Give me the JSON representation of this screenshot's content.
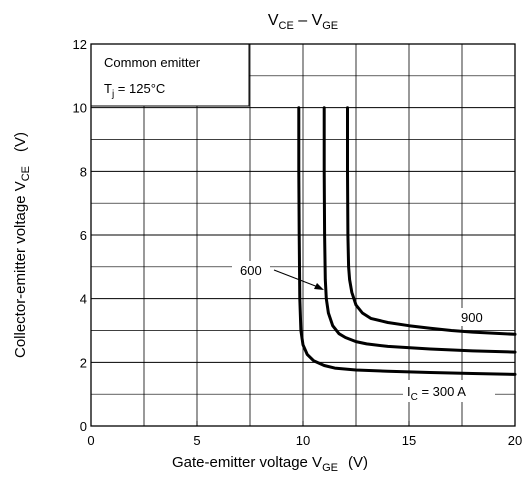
{
  "chart_data": {
    "type": "line",
    "title": {
      "main": "V",
      "sub1": "CE",
      "mid": " – V",
      "sub2": "GE"
    },
    "xlabel": {
      "text": "Gate-emitter voltage   V",
      "sub": "GE",
      "unit": "(V)"
    },
    "ylabel": {
      "text": "Collector-emitter voltage   V",
      "sub": "CE",
      "unit": "(V)"
    },
    "xlim": [
      0,
      20
    ],
    "ylim": [
      0,
      12
    ],
    "xticks": [
      "0",
      "5",
      "10",
      "15",
      "20"
    ],
    "yticks": [
      "0",
      "2",
      "4",
      "6",
      "8",
      "10",
      "12"
    ],
    "grid": true,
    "annotation": {
      "line1": "Common emitter",
      "line2_main": "T",
      "line2_sub": "j",
      "line2_rest": " = 125°C"
    },
    "series": [
      {
        "name": "300 A",
        "label_main": "I",
        "label_sub": "C",
        "label_rest": " = 300 A",
        "x": [
          9.8,
          9.8,
          9.82,
          9.85,
          9.9,
          10.0,
          10.2,
          10.5,
          11.0,
          11.5,
          12.5,
          14.0,
          16.0,
          18.0,
          20.0
        ],
        "y": [
          10.0,
          8.0,
          6.0,
          4.0,
          3.0,
          2.55,
          2.25,
          2.05,
          1.9,
          1.82,
          1.76,
          1.72,
          1.68,
          1.65,
          1.62
        ]
      },
      {
        "name": "600",
        "label": "600",
        "x": [
          11.0,
          11.0,
          11.02,
          11.05,
          11.1,
          11.2,
          11.4,
          11.7,
          12.0,
          12.5,
          13.0,
          14.0,
          16.0,
          18.0,
          20.0
        ],
        "y": [
          10.0,
          8.0,
          6.0,
          4.6,
          4.0,
          3.55,
          3.15,
          2.9,
          2.78,
          2.65,
          2.58,
          2.5,
          2.42,
          2.36,
          2.32
        ]
      },
      {
        "name": "900",
        "label": "900",
        "x": [
          12.1,
          12.1,
          12.12,
          12.15,
          12.2,
          12.3,
          12.5,
          12.8,
          13.2,
          14.0,
          15.0,
          16.0,
          17.0,
          18.0,
          20.0
        ],
        "y": [
          10.0,
          8.0,
          6.0,
          5.0,
          4.6,
          4.2,
          3.8,
          3.55,
          3.38,
          3.25,
          3.15,
          3.07,
          3.0,
          2.95,
          2.88
        ]
      }
    ]
  }
}
